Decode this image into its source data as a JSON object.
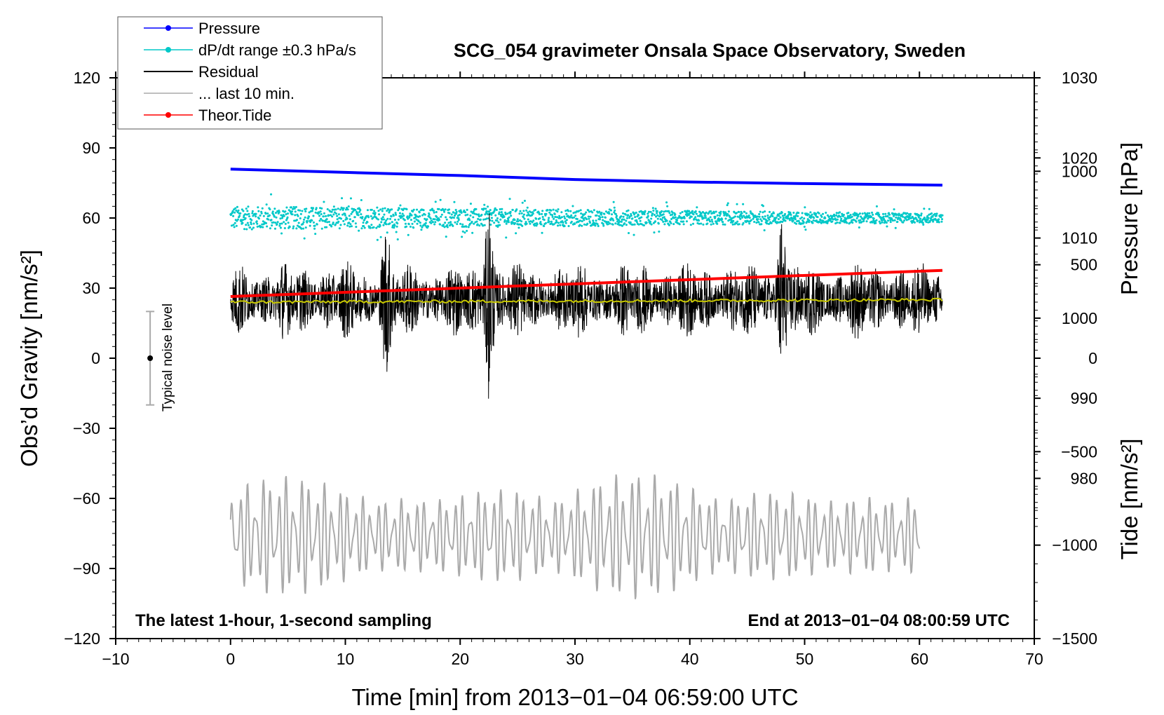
{
  "chart_data": {
    "type": "line",
    "title": "SCG_054 gravimeter Onsala Space Observatory, Sweden",
    "xlabel": "Time [min] from 2013−01−04 06:59:00 UTC",
    "ylabel_left": "Obs’d Gravity [nm/s²]",
    "ylabel_right_top": "Pressure [hPa]",
    "ylabel_right_bottom": "Tide [nm/s²]",
    "xlim": [
      -10,
      70
    ],
    "ylim_left": [
      -120,
      120
    ],
    "ylim_right_pressure": [
      960,
      1030
    ],
    "ylim_right_tide": [
      -1500,
      1500
    ],
    "x_ticks": [
      "−10",
      "0",
      "10",
      "20",
      "30",
      "40",
      "50",
      "60",
      "70"
    ],
    "y_left_ticks": [
      "120",
      "90",
      "60",
      "30",
      "0",
      "−30",
      "−60",
      "−90",
      "−120"
    ],
    "y_right_pressure_ticks": [
      "1030",
      "1020",
      "1010",
      "1000",
      "990",
      "980"
    ],
    "y_right_tide_ticks": [
      "1000",
      "500",
      "0",
      "−500",
      "−1000",
      "−1500"
    ],
    "grid": false,
    "legend_position": "top-left",
    "legend": [
      {
        "name": "Pressure",
        "color": "#0000ff",
        "style": "line-dot"
      },
      {
        "name": "dP/dt range ±0.3 hPa/s",
        "color": "#00c8c8",
        "style": "line-dot"
      },
      {
        "name": "Residual",
        "color": "#000000",
        "style": "line"
      },
      {
        "name": "... last 10 min.",
        "color": "#aaaaaa",
        "style": "line"
      },
      {
        "name": "Theor.Tide",
        "color": "#ff0000",
        "style": "line-dot"
      }
    ],
    "series": [
      {
        "name": "Pressure",
        "axis": "pressure",
        "x": [
          0,
          10,
          20,
          30,
          40,
          50,
          62
        ],
        "values": [
          1018.6,
          1018.2,
          1017.8,
          1017.3,
          1017.0,
          1016.8,
          1016.6
        ]
      },
      {
        "name": "dP/dt range ±0.3 hPa/s",
        "axis": "left",
        "center": 60,
        "spread_start": 5,
        "spread_end": 2,
        "x_range": [
          0,
          62
        ]
      },
      {
        "name": "Residual",
        "axis": "left",
        "x_range": [
          0,
          62
        ],
        "center": 25,
        "amplitude": 12,
        "bursts": [
          {
            "x": 22.5,
            "value_max": 65,
            "value_min": -14
          },
          {
            "x": 13.5,
            "value_max": 50,
            "value_min": -5
          },
          {
            "x": 48,
            "value_max": 58,
            "value_min": -5
          }
        ]
      },
      {
        "name": "Residual mean",
        "axis": "left",
        "color": "#c8c800",
        "x": [
          0,
          62
        ],
        "values": [
          24,
          25
        ]
      },
      {
        "name": "Theor.Tide",
        "axis": "tide",
        "x": [
          0,
          62
        ],
        "values": [
          330,
          470
        ]
      },
      {
        "name": "... last 10 min.",
        "axis": "left",
        "x_range": [
          0,
          60
        ],
        "center": -76,
        "amplitude": 22
      }
    ],
    "noise_bar": {
      "x": -7,
      "center": 0,
      "low": -20,
      "high": 20,
      "label": "Typical noise level"
    },
    "annotations": {
      "bottom_left": "The latest 1-hour, 1-second sampling",
      "bottom_right": "End at 2013−01−04 08:00:59 UTC"
    }
  }
}
